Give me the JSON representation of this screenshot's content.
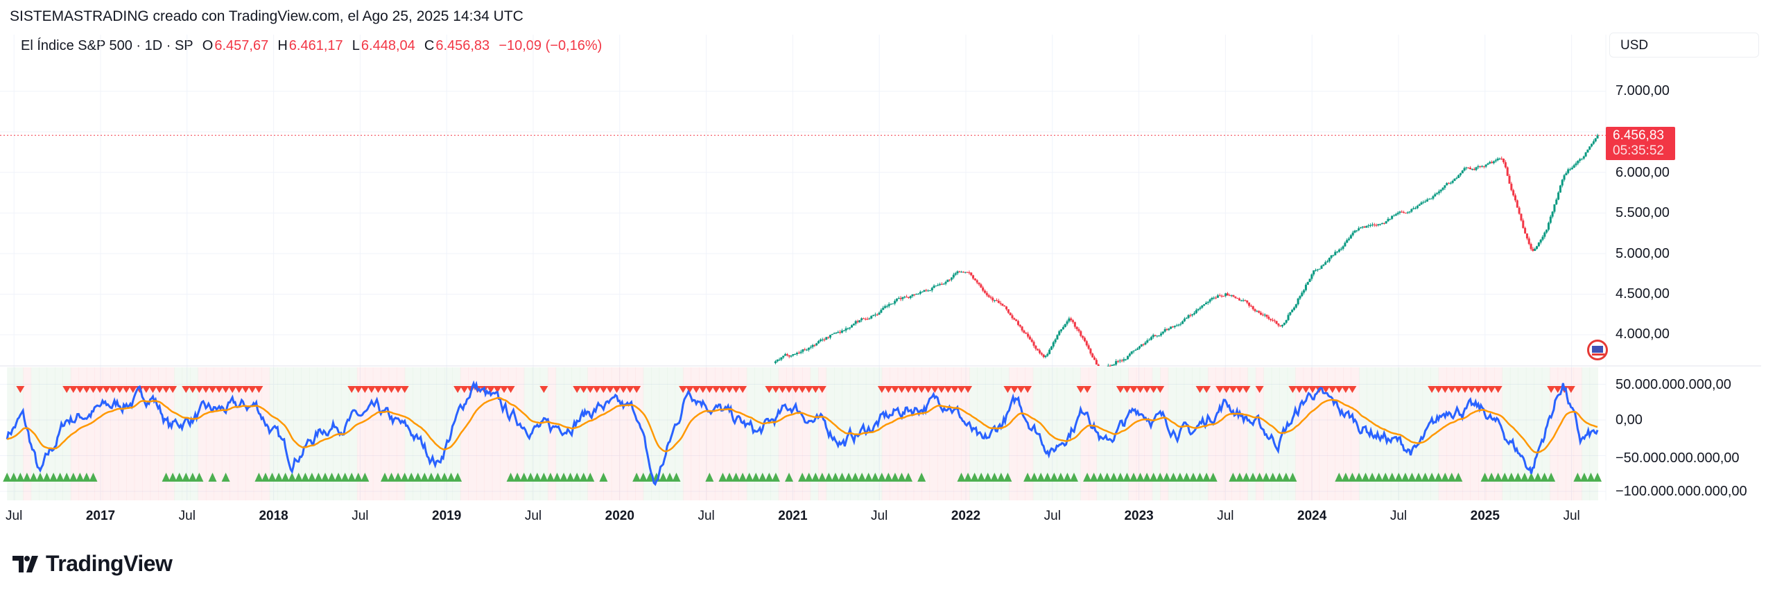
{
  "header": {
    "title": "SISTEMASTRADING creado con TradingView.com, el Ago 25, 2025 14:34 UTC"
  },
  "legend": {
    "symbol": "El Índice S&P 500 · 1D · SP",
    "o_label": "O",
    "o": "6.457,67",
    "h_label": "H",
    "h": "6.461,17",
    "l_label": "L",
    "l": "6.448,04",
    "c_label": "C",
    "c": "6.456,83",
    "change": "−10,09 (−0,16%)"
  },
  "currency": "USD",
  "last_price": {
    "price": "6.456,83",
    "countdown": "05:35:52"
  },
  "price_axis": [
    "7.000,00",
    "6.000,00",
    "5.500,00",
    "5.000,00",
    "4.500,00",
    "4.000,00"
  ],
  "indicator_axis": [
    "50.000.000.000,00",
    "0,00",
    "−50.000.000.000,00",
    "−100.000.000.000,00"
  ],
  "time_axis": [
    {
      "t": "Jul",
      "x": 2016.5
    },
    {
      "t": "2017",
      "x": 2017,
      "y": true
    },
    {
      "t": "Jul",
      "x": 2017.5
    },
    {
      "t": "2018",
      "x": 2018,
      "y": true
    },
    {
      "t": "Jul",
      "x": 2018.5
    },
    {
      "t": "2019",
      "x": 2019,
      "y": true
    },
    {
      "t": "Jul",
      "x": 2019.5
    },
    {
      "t": "2020",
      "x": 2020,
      "y": true
    },
    {
      "t": "Jul",
      "x": 2020.5
    },
    {
      "t": "2021",
      "x": 2021,
      "y": true
    },
    {
      "t": "Jul",
      "x": 2021.5
    },
    {
      "t": "2022",
      "x": 2022,
      "y": true
    },
    {
      "t": "Jul",
      "x": 2022.5
    },
    {
      "t": "2023",
      "x": 2023,
      "y": true
    },
    {
      "t": "Jul",
      "x": 2023.5
    },
    {
      "t": "2024",
      "x": 2024,
      "y": true
    },
    {
      "t": "Jul",
      "x": 2024.5
    },
    {
      "t": "2025",
      "x": 2025,
      "y": true
    },
    {
      "t": "Jul",
      "x": 2025.5
    }
  ],
  "logo": "TradingView",
  "colors": {
    "up": "#089981",
    "down": "#f23645",
    "osc": "#2962ff",
    "signal": "#ff9800",
    "buy": "#4caf50",
    "sell": "#f44336"
  },
  "chart_data": {
    "type": "candlestick",
    "price_keypoints": [
      [
        2020.9,
        3650
      ],
      [
        2021.0,
        3750
      ],
      [
        2021.5,
        4300
      ],
      [
        2021.99,
        4790
      ],
      [
        2022.2,
        4400
      ],
      [
        2022.45,
        3700
      ],
      [
        2022.6,
        4200
      ],
      [
        2022.78,
        3580
      ],
      [
        2023.0,
        3850
      ],
      [
        2023.5,
        4500
      ],
      [
        2023.82,
        4120
      ],
      [
        2024.0,
        4780
      ],
      [
        2024.25,
        5250
      ],
      [
        2024.6,
        5600
      ],
      [
        2024.9,
        6050
      ],
      [
        2025.1,
        6140
      ],
      [
        2025.27,
        4980
      ],
      [
        2025.35,
        5250
      ],
      [
        2025.45,
        5900
      ],
      [
        2025.6,
        6300
      ],
      [
        2025.65,
        6457
      ]
    ],
    "price_range": [
      3620,
      7300
    ],
    "oscillator_keypoints": [
      [
        2016.46,
        -20
      ],
      [
        2016.55,
        5
      ],
      [
        2016.65,
        -80
      ],
      [
        2016.8,
        0
      ],
      [
        2017.0,
        15
      ],
      [
        2017.3,
        35
      ],
      [
        2017.4,
        -10
      ],
      [
        2017.6,
        10
      ],
      [
        2017.9,
        20
      ],
      [
        2018.1,
        -55
      ],
      [
        2018.3,
        -10
      ],
      [
        2018.6,
        10
      ],
      [
        2018.8,
        -20
      ],
      [
        2018.95,
        -60
      ],
      [
        2019.15,
        50
      ],
      [
        2019.4,
        0
      ],
      [
        2019.6,
        -15
      ],
      [
        2019.9,
        20
      ],
      [
        2020.1,
        10
      ],
      [
        2020.2,
        -95
      ],
      [
        2020.4,
        45
      ],
      [
        2020.6,
        10
      ],
      [
        2020.8,
        -20
      ],
      [
        2021.0,
        20
      ],
      [
        2021.3,
        -30
      ],
      [
        2021.6,
        10
      ],
      [
        2021.9,
        30
      ],
      [
        2022.1,
        -40
      ],
      [
        2022.3,
        25
      ],
      [
        2022.5,
        -45
      ],
      [
        2022.7,
        20
      ],
      [
        2022.8,
        -35
      ],
      [
        2023.0,
        15
      ],
      [
        2023.3,
        -20
      ],
      [
        2023.5,
        25
      ],
      [
        2023.8,
        -30
      ],
      [
        2024.0,
        40
      ],
      [
        2024.3,
        -10
      ],
      [
        2024.6,
        -45
      ],
      [
        2024.8,
        20
      ],
      [
        2025.0,
        10
      ],
      [
        2025.15,
        -30
      ],
      [
        2025.27,
        -70
      ],
      [
        2025.45,
        55
      ],
      [
        2025.55,
        -30
      ],
      [
        2025.65,
        -20
      ]
    ],
    "oscillator_range": [
      -110,
      65
    ],
    "oscillator_units": "billions"
  }
}
